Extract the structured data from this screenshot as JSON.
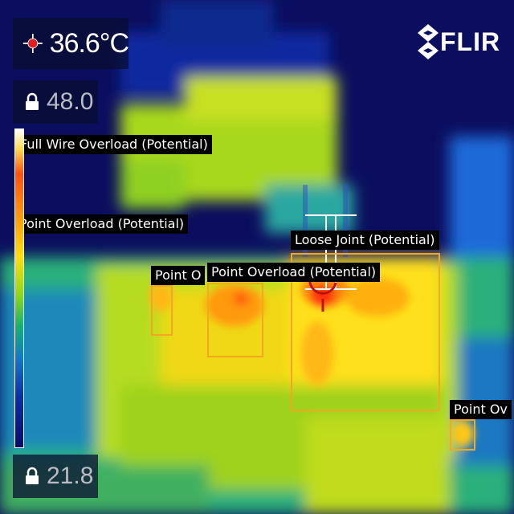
{
  "camera": {
    "spot_temperature": "36.6°C",
    "scale_max": "48.0",
    "scale_min": "21.8",
    "brand": "FLIR"
  },
  "colors": {
    "detection_box": "#f5a623",
    "label_background": "#000000",
    "hotspot": "#ff3010",
    "background": "#0b0e5e"
  },
  "icons": [
    "crosshair-icon",
    "lock-icon",
    "flir-logo-icon"
  ],
  "detections": [
    {
      "label": "Full Wire Overload (Potential)"
    },
    {
      "label": "Point Overload (Potential)"
    },
    {
      "label": "Point O"
    },
    {
      "label": "Point Overload (Potential)"
    },
    {
      "label": "Loose Joint (Potential)"
    },
    {
      "label": "Point Ov"
    }
  ]
}
